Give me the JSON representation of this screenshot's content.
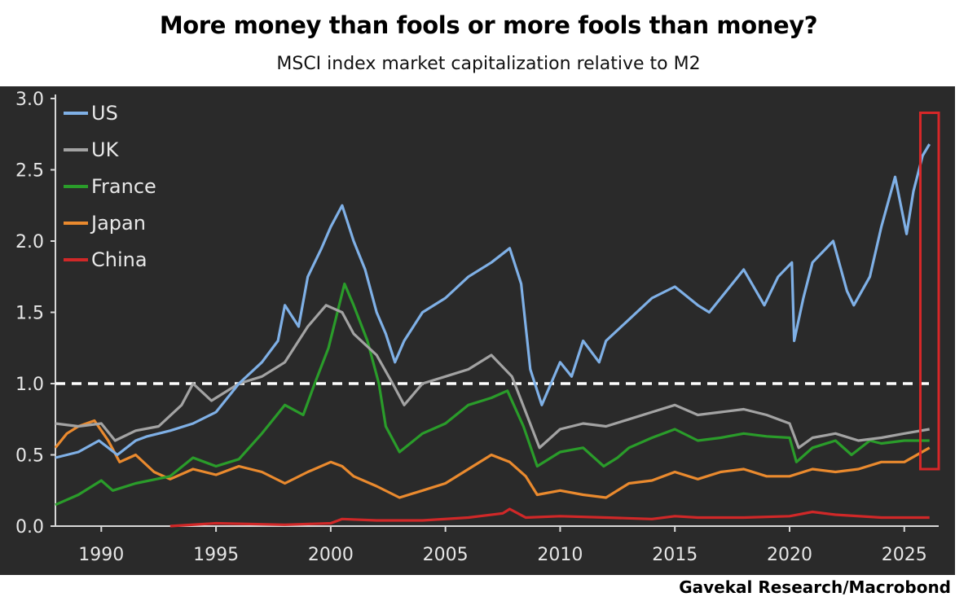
{
  "header": {
    "title": "More money than fools or more fools than money?",
    "subtitle": "MSCI index market capitalization relative to M2"
  },
  "footer": {
    "source": "Gavekal Research/Macrobond"
  },
  "chart_data": {
    "type": "line",
    "title": "More money than fools or more fools than money?",
    "subtitle": "MSCI index market capitalization relative to M2",
    "xlabel": "",
    "ylabel": "",
    "xlim": [
      1988,
      2026.5
    ],
    "ylim": [
      0,
      3.0
    ],
    "x_ticks": [
      1990,
      1995,
      2000,
      2005,
      2010,
      2015,
      2020,
      2025
    ],
    "y_ticks": [
      0.0,
      0.5,
      1.0,
      1.5,
      2.0,
      2.5,
      3.0
    ],
    "y_tick_labels": [
      "0.0",
      "0.5",
      "1.0",
      "1.5",
      "2.0",
      "2.5",
      "3.0"
    ],
    "grid": false,
    "legend": "top-left",
    "reference_line": {
      "y": 1.0,
      "style": "dashed",
      "color": "#ffffff"
    },
    "highlight_box": {
      "x_range": [
        2025.7,
        2026.5
      ],
      "y_range": [
        0.4,
        2.9
      ],
      "color": "#d62728"
    },
    "series": [
      {
        "name": "US",
        "color": "#7fb0e6",
        "points": [
          [
            1988,
            0.48
          ],
          [
            1989,
            0.52
          ],
          [
            1989.9,
            0.6
          ],
          [
            1990.7,
            0.5
          ],
          [
            1991.5,
            0.6
          ],
          [
            1992,
            0.63
          ],
          [
            1993,
            0.67
          ],
          [
            1994,
            0.72
          ],
          [
            1995,
            0.8
          ],
          [
            1996,
            1.0
          ],
          [
            1997,
            1.15
          ],
          [
            1997.7,
            1.3
          ],
          [
            1998,
            1.55
          ],
          [
            1998.6,
            1.4
          ],
          [
            1999,
            1.75
          ],
          [
            1999.6,
            1.95
          ],
          [
            2000,
            2.1
          ],
          [
            2000.5,
            2.25
          ],
          [
            2001,
            2.0
          ],
          [
            2001.5,
            1.8
          ],
          [
            2002,
            1.5
          ],
          [
            2002.4,
            1.35
          ],
          [
            2002.8,
            1.15
          ],
          [
            2003.2,
            1.3
          ],
          [
            2004,
            1.5
          ],
          [
            2005,
            1.6
          ],
          [
            2006,
            1.75
          ],
          [
            2007,
            1.85
          ],
          [
            2007.8,
            1.95
          ],
          [
            2008.3,
            1.7
          ],
          [
            2008.7,
            1.1
          ],
          [
            2009.2,
            0.85
          ],
          [
            2010,
            1.15
          ],
          [
            2010.5,
            1.05
          ],
          [
            2011,
            1.3
          ],
          [
            2011.7,
            1.15
          ],
          [
            2012,
            1.3
          ],
          [
            2013,
            1.45
          ],
          [
            2014,
            1.6
          ],
          [
            2015,
            1.68
          ],
          [
            2016,
            1.55
          ],
          [
            2016.5,
            1.5
          ],
          [
            2017,
            1.6
          ],
          [
            2018,
            1.8
          ],
          [
            2018.9,
            1.55
          ],
          [
            2019.5,
            1.75
          ],
          [
            2020.1,
            1.85
          ],
          [
            2020.2,
            1.3
          ],
          [
            2020.6,
            1.6
          ],
          [
            2021,
            1.85
          ],
          [
            2021.9,
            2.0
          ],
          [
            2022.5,
            1.65
          ],
          [
            2022.8,
            1.55
          ],
          [
            2023.5,
            1.75
          ],
          [
            2024,
            2.1
          ],
          [
            2024.6,
            2.45
          ],
          [
            2025.1,
            2.05
          ],
          [
            2025.4,
            2.35
          ],
          [
            2025.8,
            2.6
          ],
          [
            2026.1,
            2.68
          ]
        ]
      },
      {
        "name": "UK",
        "color": "#a3a3a3",
        "points": [
          [
            1988,
            0.72
          ],
          [
            1989,
            0.7
          ],
          [
            1990,
            0.72
          ],
          [
            1990.6,
            0.6
          ],
          [
            1991.5,
            0.67
          ],
          [
            1992.5,
            0.7
          ],
          [
            1993.5,
            0.85
          ],
          [
            1994,
            1.0
          ],
          [
            1994.8,
            0.88
          ],
          [
            1996,
            1.0
          ],
          [
            1997,
            1.05
          ],
          [
            1998,
            1.15
          ],
          [
            1999,
            1.4
          ],
          [
            1999.8,
            1.55
          ],
          [
            2000.5,
            1.5
          ],
          [
            2001,
            1.35
          ],
          [
            2002,
            1.2
          ],
          [
            2002.7,
            1.0
          ],
          [
            2003.2,
            0.85
          ],
          [
            2004,
            1.0
          ],
          [
            2005,
            1.05
          ],
          [
            2006,
            1.1
          ],
          [
            2007,
            1.2
          ],
          [
            2007.9,
            1.05
          ],
          [
            2008.5,
            0.8
          ],
          [
            2009.1,
            0.55
          ],
          [
            2010,
            0.68
          ],
          [
            2011,
            0.72
          ],
          [
            2012,
            0.7
          ],
          [
            2013,
            0.75
          ],
          [
            2014,
            0.8
          ],
          [
            2015,
            0.85
          ],
          [
            2016,
            0.78
          ],
          [
            2017,
            0.8
          ],
          [
            2018,
            0.82
          ],
          [
            2019,
            0.78
          ],
          [
            2020,
            0.72
          ],
          [
            2020.4,
            0.55
          ],
          [
            2021,
            0.62
          ],
          [
            2022,
            0.65
          ],
          [
            2023,
            0.6
          ],
          [
            2024,
            0.62
          ],
          [
            2025,
            0.65
          ],
          [
            2026.1,
            0.68
          ]
        ]
      },
      {
        "name": "France",
        "color": "#2a9c2a",
        "points": [
          [
            1988,
            0.15
          ],
          [
            1989,
            0.22
          ],
          [
            1990,
            0.32
          ],
          [
            1990.5,
            0.25
          ],
          [
            1991.5,
            0.3
          ],
          [
            1993,
            0.35
          ],
          [
            1994,
            0.48
          ],
          [
            1995,
            0.42
          ],
          [
            1996,
            0.47
          ],
          [
            1997,
            0.65
          ],
          [
            1998,
            0.85
          ],
          [
            1998.8,
            0.78
          ],
          [
            1999.3,
            1.0
          ],
          [
            1999.9,
            1.25
          ],
          [
            2000.6,
            1.7
          ],
          [
            2001,
            1.55
          ],
          [
            2001.6,
            1.3
          ],
          [
            2002.1,
            1.0
          ],
          [
            2002.4,
            0.7
          ],
          [
            2003,
            0.52
          ],
          [
            2004,
            0.65
          ],
          [
            2005,
            0.72
          ],
          [
            2006,
            0.85
          ],
          [
            2007,
            0.9
          ],
          [
            2007.7,
            0.95
          ],
          [
            2008.4,
            0.7
          ],
          [
            2009,
            0.42
          ],
          [
            2010,
            0.52
          ],
          [
            2011,
            0.55
          ],
          [
            2011.9,
            0.42
          ],
          [
            2012.5,
            0.48
          ],
          [
            2013,
            0.55
          ],
          [
            2014,
            0.62
          ],
          [
            2015,
            0.68
          ],
          [
            2016,
            0.6
          ],
          [
            2017,
            0.62
          ],
          [
            2018,
            0.65
          ],
          [
            2019,
            0.63
          ],
          [
            2020,
            0.62
          ],
          [
            2020.3,
            0.45
          ],
          [
            2021,
            0.55
          ],
          [
            2022,
            0.6
          ],
          [
            2022.7,
            0.5
          ],
          [
            2023.5,
            0.6
          ],
          [
            2024,
            0.58
          ],
          [
            2025,
            0.6
          ],
          [
            2026.1,
            0.6
          ]
        ]
      },
      {
        "name": "Japan",
        "color": "#ea8a2e",
        "points": [
          [
            1988,
            0.55
          ],
          [
            1988.5,
            0.65
          ],
          [
            1989,
            0.7
          ],
          [
            1989.7,
            0.74
          ],
          [
            1990.3,
            0.6
          ],
          [
            1990.8,
            0.45
          ],
          [
            1991.5,
            0.5
          ],
          [
            1992.3,
            0.38
          ],
          [
            1993,
            0.33
          ],
          [
            1994,
            0.4
          ],
          [
            1995,
            0.36
          ],
          [
            1996,
            0.42
          ],
          [
            1997,
            0.38
          ],
          [
            1998,
            0.3
          ],
          [
            1999,
            0.38
          ],
          [
            2000,
            0.45
          ],
          [
            2000.5,
            0.42
          ],
          [
            2001,
            0.35
          ],
          [
            2002,
            0.28
          ],
          [
            2003,
            0.2
          ],
          [
            2004,
            0.25
          ],
          [
            2005,
            0.3
          ],
          [
            2006,
            0.4
          ],
          [
            2007,
            0.5
          ],
          [
            2007.8,
            0.45
          ],
          [
            2008.5,
            0.35
          ],
          [
            2009,
            0.22
          ],
          [
            2010,
            0.25
          ],
          [
            2011,
            0.22
          ],
          [
            2012,
            0.2
          ],
          [
            2013,
            0.3
          ],
          [
            2014,
            0.32
          ],
          [
            2015,
            0.38
          ],
          [
            2016,
            0.33
          ],
          [
            2017,
            0.38
          ],
          [
            2018,
            0.4
          ],
          [
            2019,
            0.35
          ],
          [
            2020,
            0.35
          ],
          [
            2021,
            0.4
          ],
          [
            2022,
            0.38
          ],
          [
            2023,
            0.4
          ],
          [
            2024,
            0.45
          ],
          [
            2025,
            0.45
          ],
          [
            2026.1,
            0.55
          ]
        ]
      },
      {
        "name": "China",
        "color": "#d02828",
        "points": [
          [
            1993,
            0.0
          ],
          [
            1995,
            0.02
          ],
          [
            1998,
            0.01
          ],
          [
            2000,
            0.02
          ],
          [
            2000.5,
            0.05
          ],
          [
            2002,
            0.04
          ],
          [
            2004,
            0.04
          ],
          [
            2006,
            0.06
          ],
          [
            2007.5,
            0.09
          ],
          [
            2007.8,
            0.12
          ],
          [
            2008.5,
            0.06
          ],
          [
            2010,
            0.07
          ],
          [
            2012,
            0.06
          ],
          [
            2014,
            0.05
          ],
          [
            2015,
            0.07
          ],
          [
            2016,
            0.06
          ],
          [
            2018,
            0.06
          ],
          [
            2020,
            0.07
          ],
          [
            2021,
            0.1
          ],
          [
            2022,
            0.08
          ],
          [
            2024,
            0.06
          ],
          [
            2026.1,
            0.06
          ]
        ]
      }
    ]
  }
}
